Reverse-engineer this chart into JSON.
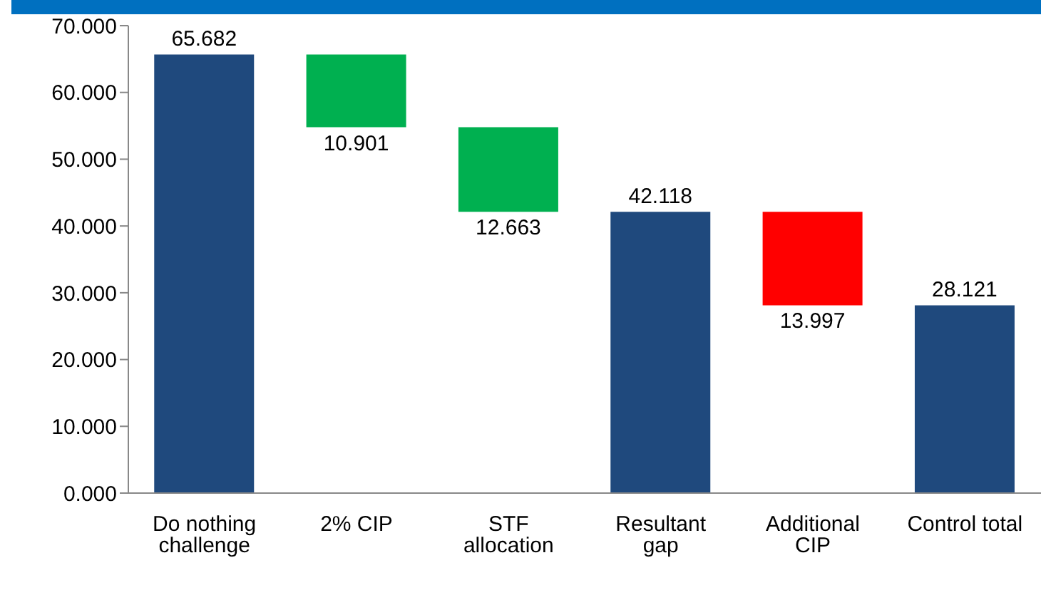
{
  "chart_data": {
    "type": "bar",
    "categories": [
      "Do nothing challenge",
      "2% CIP",
      "STF allocation",
      "Resultant gap",
      "Additional CIP",
      "Control total"
    ],
    "values": [
      65.682,
      10.901,
      12.663,
      42.118,
      13.997,
      28.121
    ],
    "base": [
      0,
      54.781,
      42.118,
      0,
      28.121,
      0
    ],
    "colors": [
      "#1f497d",
      "#00b050",
      "#00b050",
      "#1f497d",
      "#ff0000",
      "#1f497d"
    ],
    "value_labels": [
      "65.682",
      "10.901",
      "12.663",
      "42.118",
      "13.997",
      "28.121"
    ],
    "ylim": [
      0,
      70
    ],
    "yticks": [
      {
        "value": 0,
        "label": "0.000"
      },
      {
        "value": 10,
        "label": "10.000"
      },
      {
        "value": 20,
        "label": "20.000"
      },
      {
        "value": 30,
        "label": "30.000"
      },
      {
        "value": 40,
        "label": "40.000"
      },
      {
        "value": 50,
        "label": "50.000"
      },
      {
        "value": 60,
        "label": "60.000"
      },
      {
        "value": 70,
        "label": "70.000"
      }
    ],
    "grid": false,
    "legend": false
  }
}
